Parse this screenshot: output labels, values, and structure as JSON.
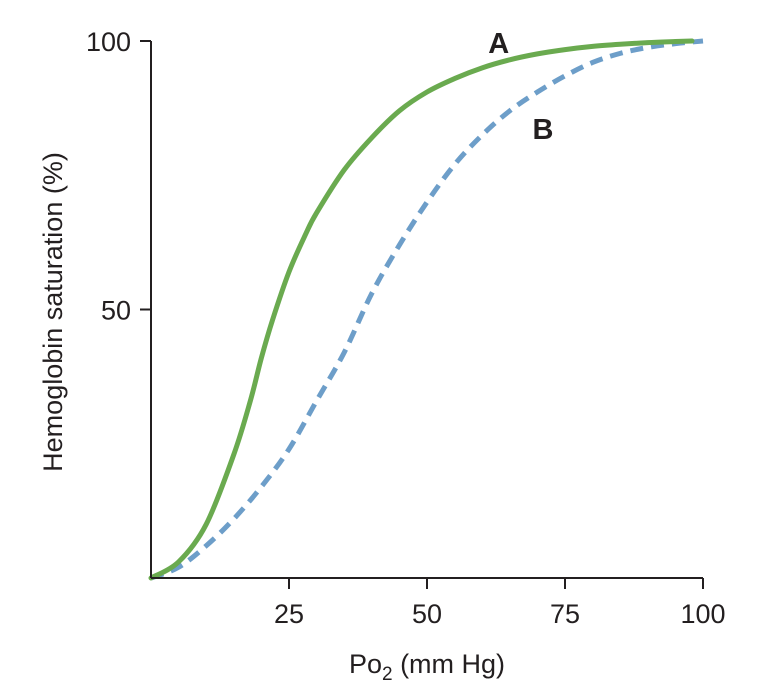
{
  "chart_data": {
    "type": "line",
    "title": "",
    "xlabel": {
      "main": "Po",
      "sub": "2",
      "rest": " (mm Hg)"
    },
    "ylabel": "Hemoglobin saturation (%)",
    "xlim": [
      0,
      100
    ],
    "ylim": [
      0,
      100
    ],
    "xticks": [
      25,
      50,
      75,
      100
    ],
    "xtick_labels": [
      "25",
      "50",
      "75",
      "100"
    ],
    "yticks": [
      50,
      100
    ],
    "ytick_labels": [
      "50",
      "100"
    ],
    "grid": false,
    "series": [
      {
        "name": "A",
        "color": "#6aaa4f",
        "style": "solid",
        "x": [
          0,
          5,
          10,
          15,
          18,
          20,
          22,
          25,
          28,
          30,
          35,
          40,
          45,
          50,
          55,
          60,
          65,
          70,
          75,
          80,
          85,
          90,
          95,
          98
        ],
        "y": [
          0,
          3,
          10,
          23,
          33,
          41,
          48,
          57,
          64,
          68,
          76,
          82,
          87,
          90.5,
          93,
          95,
          96.5,
          97.6,
          98.4,
          99,
          99.4,
          99.7,
          99.9,
          100
        ]
      },
      {
        "name": "B",
        "color": "#6d9ec9",
        "style": "dashed",
        "x": [
          0,
          5,
          10,
          15,
          20,
          25,
          30,
          35,
          40,
          45,
          50,
          55,
          60,
          65,
          70,
          75,
          80,
          85,
          90,
          95,
          100
        ],
        "y": [
          0,
          2,
          6,
          11,
          17,
          24,
          33,
          42,
          53,
          62,
          70,
          77,
          82.5,
          87,
          90.5,
          93.5,
          96,
          97.7,
          98.8,
          99.5,
          100
        ]
      }
    ],
    "series_labels": [
      {
        "text": "A",
        "x": 63,
        "y": 100
      },
      {
        "text": "B",
        "x": 71,
        "y": 84
      }
    ]
  }
}
